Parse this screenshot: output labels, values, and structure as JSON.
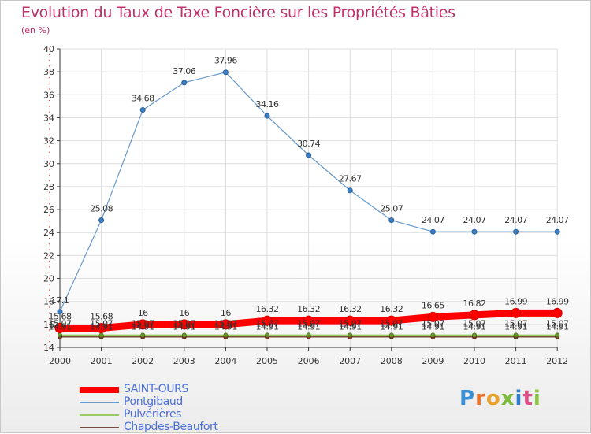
{
  "title": "Evolution du Taux de Taxe Foncière sur les Propriétés Bâties",
  "subtitle": "(en %)",
  "logo_text": "Proxiti",
  "colors": {
    "title": "#c0306a",
    "grid": "#dddddd",
    "axis": "#333333"
  },
  "chart_data": {
    "type": "line",
    "title": "Evolution du Taux de Taxe Foncière sur les Propriétés Bâties",
    "ylabel": "(en %)",
    "xlabel": "",
    "ylim": [
      14,
      40
    ],
    "yticks": [
      14,
      16,
      18,
      20,
      22,
      24,
      26,
      28,
      30,
      32,
      34,
      36,
      38,
      40
    ],
    "grid": true,
    "legend_position": "bottom-left",
    "categories": [
      "2000",
      "2001",
      "2002",
      "2003",
      "2004",
      "2005",
      "2006",
      "2007",
      "2008",
      "2009",
      "2010",
      "2011",
      "2012"
    ],
    "series": [
      {
        "name": "SAINT-OURS",
        "color": "#ff0000",
        "values": [
          15.68,
          15.68,
          16,
          16,
          16,
          16.32,
          16.32,
          16.32,
          16.32,
          16.65,
          16.82,
          16.99,
          16.99
        ],
        "labels": [
          "15.68",
          "15.68",
          "16",
          "16",
          "16",
          "16.32",
          "16.32",
          "16.32",
          "16.32",
          "16.65",
          "16.82",
          "16.99",
          "16.99"
        ]
      },
      {
        "name": "Pontgibaud",
        "color": "#6699cc",
        "values": [
          17.1,
          25.08,
          34.68,
          37.06,
          37.96,
          34.16,
          30.74,
          27.67,
          25.07,
          24.07,
          24.07,
          24.07,
          24.07
        ],
        "labels": [
          "17.1",
          "25.08",
          "34.68",
          "37.06",
          "37.96",
          "34.16",
          "30.74",
          "27.67",
          "25.07",
          "24.07",
          "24.07",
          "24.07",
          "24.07"
        ]
      },
      {
        "name": "Pulvérières",
        "color": "#99cc66",
        "values": [
          15.07,
          15.07,
          15.07,
          15.07,
          15.07,
          15.07,
          15.07,
          15.07,
          15.07,
          15.07,
          15.07,
          15.07,
          15.07
        ],
        "labels": [
          "15.07",
          "15.07",
          "15.07",
          "15.07",
          "15.07",
          "15.07",
          "15.07",
          "15.07",
          "15.07",
          "15.07",
          "15.07",
          "15.07",
          "15.07"
        ]
      },
      {
        "name": "Chapdes-Beaufort",
        "color": "#7a4b3a",
        "values": [
          14.91,
          14.91,
          14.91,
          14.91,
          14.91,
          14.91,
          14.91,
          14.91,
          14.91,
          14.91,
          14.91,
          14.91,
          14.91
        ],
        "labels": [
          "14.91",
          "14.91",
          "14.91",
          "14.91",
          "14.91",
          "14.91",
          "14.91",
          "14.91",
          "14.91",
          "14.91",
          "14.91",
          "14.91",
          "14.91"
        ]
      }
    ]
  }
}
